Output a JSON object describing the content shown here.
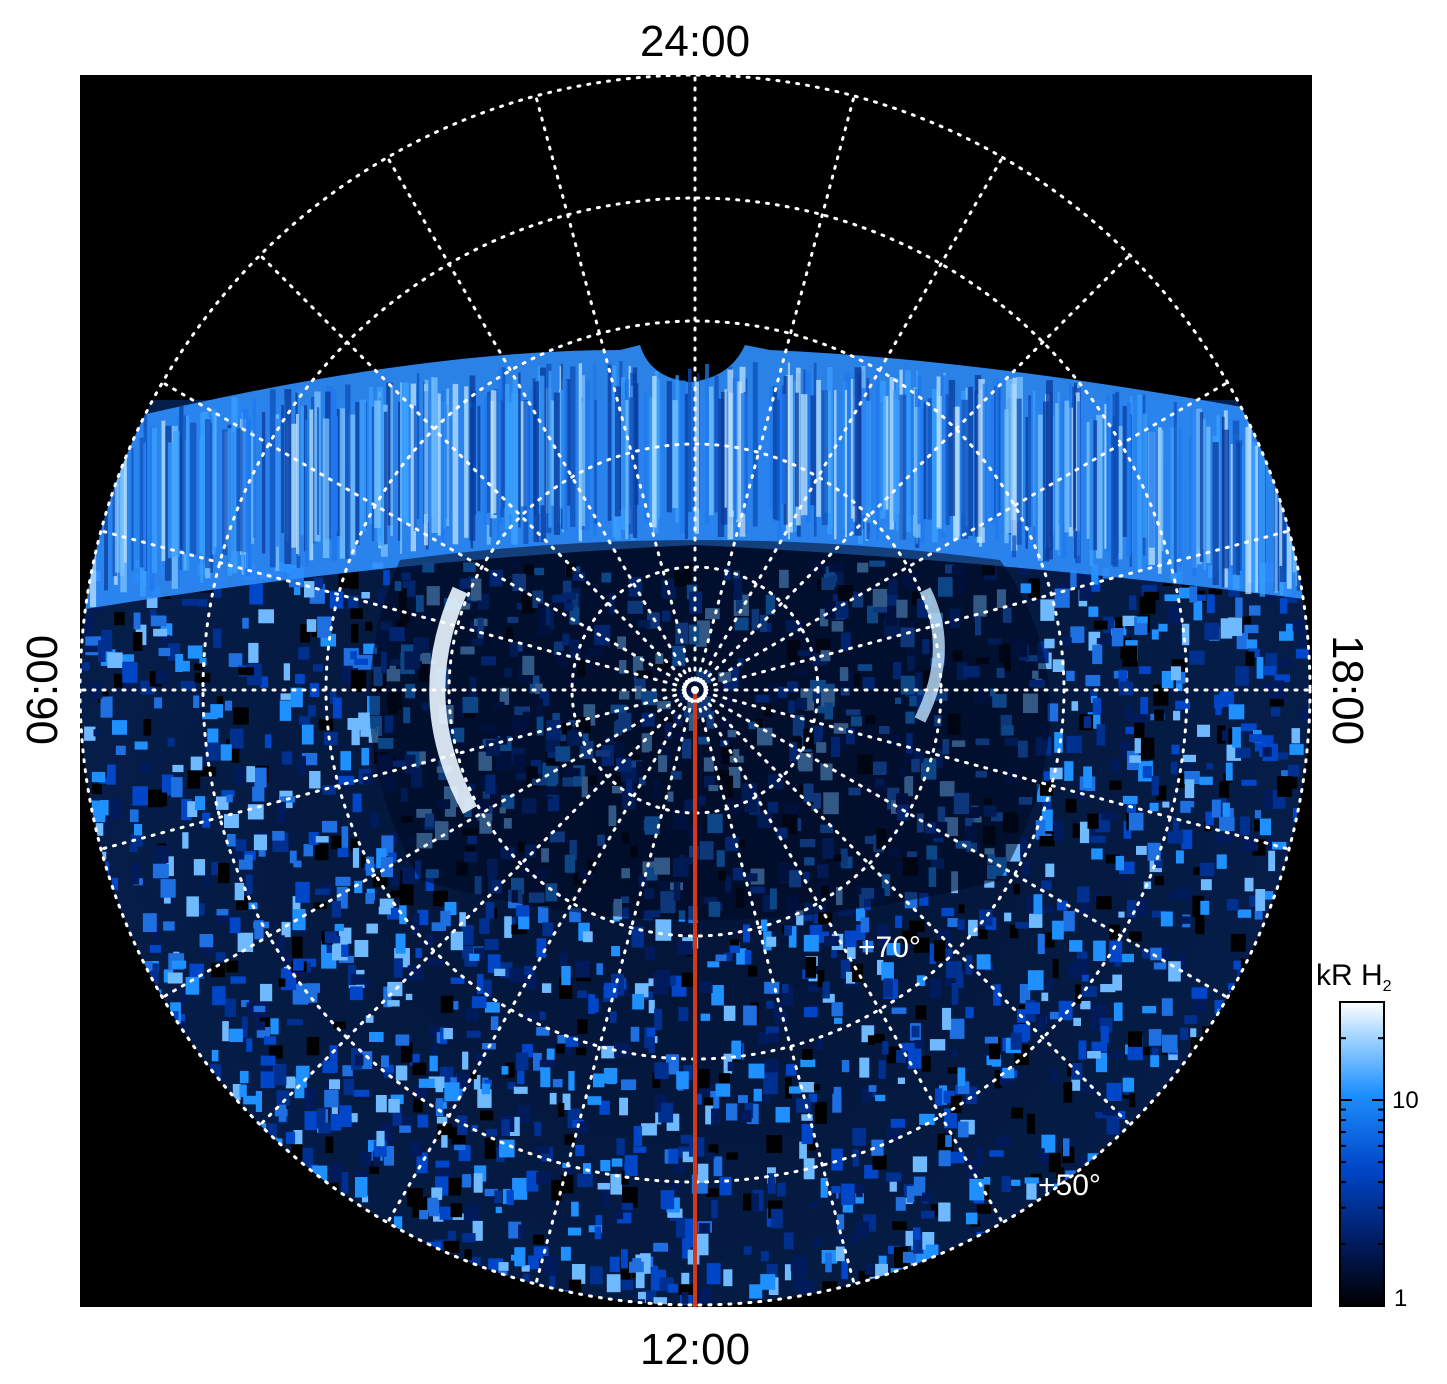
{
  "chart_data": {
    "type": "heatmap",
    "projection": "polar",
    "description_visible": false,
    "local_time_labels": {
      "top": "24:00",
      "bottom": "12:00",
      "left": "06:00",
      "right": "18:00"
    },
    "latitude_labels": [
      {
        "text": "+70°",
        "latitude": 70
      },
      {
        "text": "+50°",
        "latitude": 50
      }
    ],
    "latitude_grid": [
      80,
      70,
      60,
      50,
      40
    ],
    "meridian_spacing_hours": 1,
    "grid": "dotted",
    "colorbar": {
      "title_main": "kR H",
      "title_sub": "2",
      "scale": "log",
      "range": [
        1,
        30
      ],
      "ticks": [
        {
          "value": 10,
          "label": "10"
        },
        {
          "value": 1,
          "label": "1"
        }
      ],
      "colors": [
        "#000000",
        "#001a5c",
        "#0046c8",
        "#1e90ff",
        "#9fd3ff",
        "#ffffff"
      ],
      "placement": "right-bottom"
    },
    "features": {
      "auroral_band_color": "#2f8fff",
      "meridian_line_color": "#d03a1a",
      "background_color": "#000000",
      "disk_fill_color": "#031a46"
    }
  }
}
